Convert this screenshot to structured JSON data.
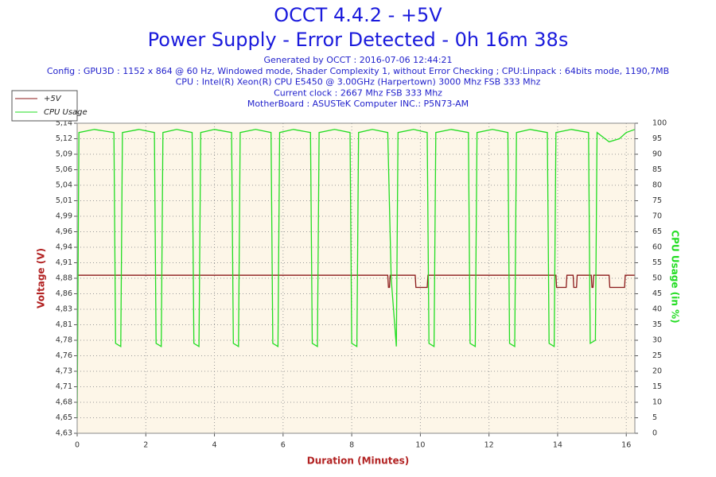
{
  "chart_data": {
    "type": "line",
    "title": "OCCT 4.4.2 - +5V",
    "subtitle": "Power Supply - Error Detected - 0h 16m 38s",
    "info": [
      "Generated by OCCT : 2016-07-06 12:44:21",
      "Config : GPU3D : 1152 x 864 @ 60 Hz, Windowed mode, Shader Complexity 1, without Error Checking ; CPU:Linpack : 64bits mode, 1190,7MB",
      "CPU : Intel(R) Xeon(R) CPU E5450 @ 3.00GHz (Harpertown) 3000 Mhz FSB 333 Mhz",
      "Current clock : 2667 Mhz FSB 333 Mhz",
      "MotherBoard : ASUSTeK Computer INC.: P5N73-AM"
    ],
    "x_label": "Duration (Minutes)",
    "y_label": "Voltage (V)",
    "y2_label": "CPU Usage (in %)",
    "xlim": [
      0,
      16.25
    ],
    "xticks": [
      0,
      2,
      4,
      6,
      8,
      10,
      12,
      14,
      16
    ],
    "ylim": [
      4.63,
      5.14
    ],
    "yticks": [
      {
        "value": 4.63,
        "label": "4,63"
      },
      {
        "value": 4.6555,
        "label": "4,65"
      },
      {
        "value": 4.681,
        "label": "4,68"
      },
      {
        "value": 4.7065,
        "label": "4,71"
      },
      {
        "value": 4.732,
        "label": "4,73"
      },
      {
        "value": 4.7575,
        "label": "4,76"
      },
      {
        "value": 4.783,
        "label": "4,78"
      },
      {
        "value": 4.8085,
        "label": "4,81"
      },
      {
        "value": 4.834,
        "label": "4,83"
      },
      {
        "value": 4.8595,
        "label": "4,86"
      },
      {
        "value": 4.885,
        "label": "4,88"
      },
      {
        "value": 4.9105,
        "label": "4,91"
      },
      {
        "value": 4.936,
        "label": "4,94"
      },
      {
        "value": 4.9615,
        "label": "4,96"
      },
      {
        "value": 4.987,
        "label": "4,99"
      },
      {
        "value": 5.0125,
        "label": "5,01"
      },
      {
        "value": 5.038,
        "label": "5,04"
      },
      {
        "value": 5.0635,
        "label": "5,06"
      },
      {
        "value": 5.089,
        "label": "5,09"
      },
      {
        "value": 5.1145,
        "label": "5,12"
      },
      {
        "value": 5.14,
        "label": "5,14"
      }
    ],
    "y2lim": [
      0,
      100
    ],
    "y2ticks": [
      0,
      5,
      10,
      15,
      20,
      25,
      30,
      35,
      40,
      45,
      50,
      55,
      60,
      65,
      70,
      75,
      80,
      85,
      90,
      95,
      100
    ],
    "grid": true,
    "legend": "top-left",
    "series": [
      {
        "name": "+5V",
        "color": "#8b1a1a",
        "x": [
          0,
          9.05,
          9.07,
          9.1,
          9.12,
          9.85,
          9.87,
          10.2,
          10.22,
          13.95,
          13.97,
          14.25,
          14.27,
          14.45,
          14.47,
          14.55,
          14.57,
          14.98,
          15.0,
          15.03,
          15.05,
          15.5,
          15.52,
          15.95,
          15.97,
          16.25
        ],
        "values": [
          4.89,
          4.89,
          4.87,
          4.87,
          4.89,
          4.89,
          4.87,
          4.87,
          4.89,
          4.89,
          4.87,
          4.87,
          4.89,
          4.89,
          4.87,
          4.87,
          4.89,
          4.89,
          4.87,
          4.87,
          4.89,
          4.89,
          4.87,
          4.87,
          4.89,
          4.89
        ]
      },
      {
        "name": "CPU Usage",
        "color": "#22dd22",
        "axis": "y2",
        "x": [
          0,
          0.05,
          0.5,
          1.07,
          1.12,
          1.27,
          1.32,
          1.8,
          2.25,
          2.3,
          2.45,
          2.5,
          2.9,
          3.35,
          3.4,
          3.55,
          3.6,
          4.0,
          4.5,
          4.55,
          4.7,
          4.75,
          5.2,
          5.65,
          5.7,
          5.85,
          5.9,
          6.3,
          6.8,
          6.85,
          7.0,
          7.05,
          7.5,
          7.95,
          8.0,
          8.15,
          8.2,
          8.6,
          9.05,
          9.15,
          9.3,
          9.35,
          9.8,
          10.2,
          10.25,
          10.4,
          10.45,
          10.9,
          11.4,
          11.45,
          11.6,
          11.65,
          12.1,
          12.55,
          12.6,
          12.75,
          12.8,
          13.2,
          13.7,
          13.75,
          13.9,
          13.95,
          14.4,
          14.9,
          14.95,
          15.1,
          15.15,
          15.5,
          15.8,
          16.0,
          16.25
        ],
        "values": [
          5,
          97,
          98,
          97,
          29,
          28,
          97,
          98,
          97,
          29,
          28,
          97,
          98,
          97,
          29,
          28,
          97,
          98,
          97,
          29,
          28,
          97,
          98,
          97,
          29,
          28,
          97,
          98,
          97,
          29,
          28,
          97,
          98,
          97,
          29,
          28,
          97,
          98,
          97,
          50,
          28,
          97,
          98,
          97,
          29,
          28,
          97,
          98,
          97,
          29,
          28,
          97,
          98,
          97,
          29,
          28,
          97,
          98,
          97,
          29,
          28,
          97,
          98,
          97,
          29,
          30,
          97,
          94,
          95,
          97,
          98
        ]
      }
    ]
  }
}
